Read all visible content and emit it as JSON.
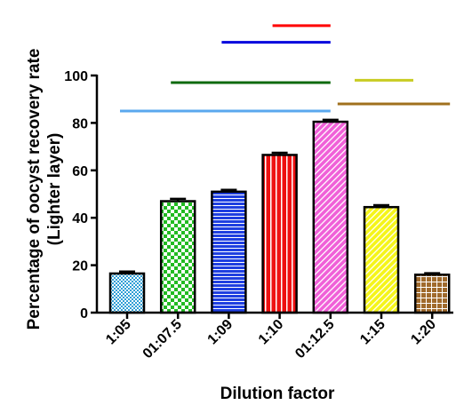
{
  "chart_data": {
    "type": "bar",
    "xlabel": "Dilution factor",
    "ylabel": [
      "Percentage of oocyst recovery rate",
      "(Lighter layer)"
    ],
    "ylim": [
      0,
      100
    ],
    "yticks": [
      0,
      20,
      40,
      60,
      80,
      100
    ],
    "grid": false,
    "categories": [
      "1:05",
      "01:07.5",
      "1:09",
      "1:10",
      "01:12.5",
      "1:15",
      "1:20"
    ],
    "values": [
      16.5,
      47,
      51,
      66.5,
      80.5,
      44.5,
      16
    ],
    "error": [
      0.8,
      1.0,
      0.8,
      0.9,
      0.8,
      0.8,
      0.6
    ],
    "bar_colors": [
      "#2f9fd6",
      "#22bb22",
      "#1f3fe0",
      "#ee1111",
      "#f060d8",
      "#f5f51a",
      "#a06a2c"
    ],
    "bar_patterns": [
      "checker-small",
      "checker",
      "horizontal-lines",
      "vertical-lines",
      "diagonal-lines",
      "diagonal-lines",
      "grid"
    ],
    "significance_lines": [
      {
        "from": 3,
        "to": 4,
        "y": 121,
        "color": "#ff0000"
      },
      {
        "from": 2,
        "to": 4,
        "y": 114,
        "color": "#0000dd"
      },
      {
        "from": 1,
        "to": 4,
        "y": 97,
        "color": "#0f6a0f"
      },
      {
        "from": 5,
        "to": 5,
        "y": 98,
        "color": "#c8cc22"
      },
      {
        "from": 0,
        "to": 4,
        "y": 85,
        "color": "#5aa8ee"
      },
      {
        "from": 4,
        "to": 6,
        "y": 88,
        "color": "#a0701e"
      }
    ]
  }
}
